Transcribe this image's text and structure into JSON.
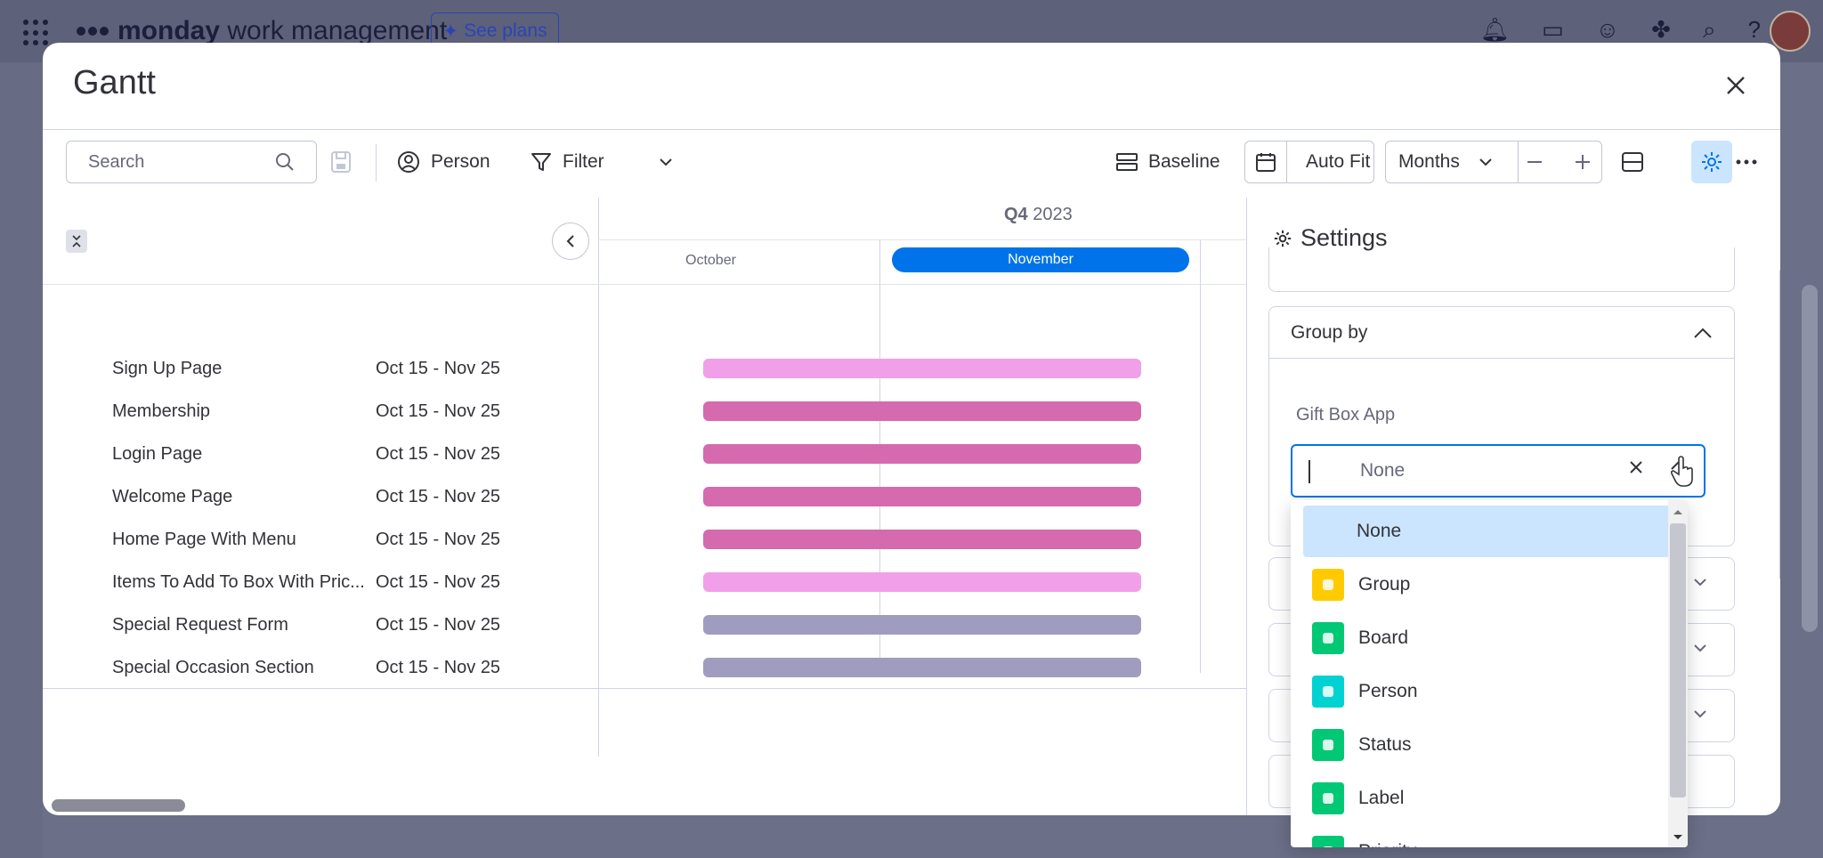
{
  "app": {
    "brand_bold": "monday",
    "brand_rest": " work management",
    "see_plans": "See plans"
  },
  "modal": {
    "title": "Gantt"
  },
  "toolbar": {
    "search_placeholder": "Search",
    "person": "Person",
    "filter": "Filter",
    "baseline": "Baseline",
    "auto_fit": "Auto Fit",
    "zoom_select": "Months"
  },
  "timeline": {
    "quarter_bold": "Q4",
    "quarter_year": "2023",
    "month_prev": "October",
    "month_current": "November"
  },
  "tasks": [
    {
      "name": "Sign Up Page",
      "dates": "Oct 15 - Nov 25",
      "color": "#f19fe8"
    },
    {
      "name": "Membership",
      "dates": "Oct 15 - Nov 25",
      "color": "#d56aae"
    },
    {
      "name": "Login Page",
      "dates": "Oct 15 - Nov 25",
      "color": "#d56aae"
    },
    {
      "name": "Welcome Page",
      "dates": "Oct 15 - Nov 25",
      "color": "#d56aae"
    },
    {
      "name": "Home Page With Menu",
      "dates": "Oct 15 - Nov 25",
      "color": "#d56aae"
    },
    {
      "name": "Items To Add To Box With Pric...",
      "dates": "Oct 15 - Nov 25",
      "color": "#f19fe8"
    },
    {
      "name": "Special Request Form",
      "dates": "Oct 15 - Nov 25",
      "color": "#a09cbf"
    },
    {
      "name": "Special Occasion Section",
      "dates": "Oct 15 - Nov 25",
      "color": "#a09cbf"
    }
  ],
  "settings": {
    "title": "Settings",
    "group_by_label": "Group by",
    "board_label": "Gift Box App",
    "select_value": "None",
    "options": [
      {
        "label": "None",
        "icon": "",
        "color": ""
      },
      {
        "label": "Group",
        "icon": "group-icon",
        "color": "#ffcb00"
      },
      {
        "label": "Board",
        "icon": "board-icon",
        "color": "#00c875"
      },
      {
        "label": "Person",
        "icon": "person-icon",
        "color": "#00d2d2"
      },
      {
        "label": "Status",
        "icon": "status-icon",
        "color": "#00c875"
      },
      {
        "label": "Label",
        "icon": "label-icon",
        "color": "#00c875"
      },
      {
        "label": "Priority",
        "icon": "priority-icon",
        "color": "#00c875"
      }
    ]
  },
  "colors": {
    "accent": "#0073ea",
    "selected_bg": "#cce5ff"
  }
}
